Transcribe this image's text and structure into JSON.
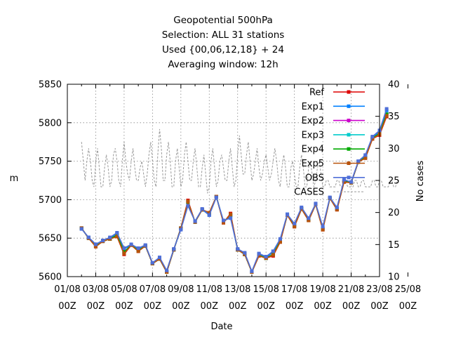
{
  "chart_data": {
    "type": "line",
    "title_lines": [
      "Geopotential 500hPa",
      "Selection: ALL     31 stations",
      "Used {00,06,12,18} + 24",
      "Averaging window: 12h"
    ],
    "xlabel": "Date",
    "ylabel": "m",
    "y2label": "No cases",
    "xlim": [
      0,
      22
    ],
    "ylim": [
      5600,
      5850
    ],
    "y2lim": [
      10,
      40
    ],
    "x_tick_labels": [
      [
        "01/08",
        "00Z"
      ],
      [
        "03/08",
        "00Z"
      ],
      [
        "05/08",
        "00Z"
      ],
      [
        "07/08",
        "00Z"
      ],
      [
        "09/08",
        "00Z"
      ],
      [
        "11/08",
        "00Z"
      ],
      [
        "13/08",
        "00Z"
      ],
      [
        "15/08",
        "00Z"
      ],
      [
        "17/08",
        "00Z"
      ],
      [
        "19/08",
        "00Z"
      ],
      [
        "21/08",
        "00Z"
      ],
      [
        "23/08",
        "00Z"
      ],
      [
        "25/08",
        "00Z"
      ]
    ],
    "y_ticks": [
      5600,
      5650,
      5700,
      5750,
      5800,
      5850
    ],
    "y2_ticks": [
      10,
      15,
      20,
      25,
      30,
      35,
      40
    ],
    "grid": true,
    "legend_position": "top-right",
    "x": [
      1.0,
      1.5,
      2.0,
      2.5,
      3.0,
      3.5,
      4.0,
      4.5,
      5.0,
      5.5,
      6.0,
      6.5,
      7.0,
      7.5,
      8.0,
      8.5,
      9.0,
      9.5,
      10.0,
      10.5,
      11.0,
      11.5,
      12.0,
      12.5,
      13.0,
      13.5,
      14.0,
      14.5,
      15.0,
      15.5,
      16.0,
      16.5,
      17.0,
      17.5,
      18.0,
      18.5,
      19.0,
      19.5,
      20.0,
      20.5,
      21.0,
      21.5,
      22.0,
      22.5
    ],
    "series": [
      {
        "name": "Ref",
        "color": "#dd0000",
        "style": "solid",
        "values": [
          5663,
          5650,
          5639,
          5646,
          5649,
          5652,
          5629,
          5641,
          5633,
          5640,
          5617,
          5623,
          5606,
          5635,
          5663,
          5699,
          5671,
          5687,
          5683,
          5704,
          5670,
          5682,
          5635,
          5629,
          5606,
          5627,
          5624,
          5627,
          5645,
          5680,
          5665,
          5688,
          5673,
          5694,
          5661,
          5702,
          5687,
          5723,
          5722,
          5749,
          5754,
          5779,
          5784,
          5808
        ]
      },
      {
        "name": "Exp1",
        "color": "#0080ff",
        "style": "solid",
        "values": [
          5662,
          5651,
          5642,
          5647,
          5650,
          5656,
          5636,
          5641,
          5636,
          5640,
          5617,
          5624,
          5607,
          5635,
          5662,
          5694,
          5672,
          5687,
          5680,
          5704,
          5672,
          5677,
          5635,
          5630,
          5606,
          5629,
          5625,
          5632,
          5648,
          5681,
          5668,
          5689,
          5675,
          5694,
          5664,
          5702,
          5689,
          5725,
          5722,
          5749,
          5757,
          5781,
          5788,
          5816
        ]
      },
      {
        "name": "Exp2",
        "color": "#cc00cc",
        "style": "solid",
        "values": [
          5663,
          5650,
          5640,
          5646,
          5649,
          5654,
          5632,
          5641,
          5634,
          5640,
          5617,
          5623,
          5606,
          5635,
          5663,
          5697,
          5671,
          5687,
          5682,
          5704,
          5671,
          5680,
          5635,
          5629,
          5606,
          5628,
          5624,
          5629,
          5646,
          5680,
          5666,
          5688,
          5674,
          5694,
          5662,
          5702,
          5688,
          5724,
          5722,
          5749,
          5755,
          5780,
          5786,
          5811
        ]
      },
      {
        "name": "Exp3",
        "color": "#00cccc",
        "style": "solid",
        "values": [
          5663,
          5650,
          5640,
          5646,
          5649,
          5654,
          5632,
          5641,
          5634,
          5640,
          5617,
          5623,
          5606,
          5635,
          5663,
          5697,
          5671,
          5687,
          5682,
          5704,
          5671,
          5680,
          5635,
          5629,
          5606,
          5628,
          5624,
          5629,
          5646,
          5680,
          5666,
          5688,
          5674,
          5694,
          5662,
          5702,
          5688,
          5724,
          5722,
          5749,
          5755,
          5780,
          5786,
          5811
        ]
      },
      {
        "name": "Exp4",
        "color": "#00aa00",
        "style": "solid",
        "values": [
          5663,
          5650,
          5640,
          5646,
          5649,
          5654,
          5632,
          5641,
          5634,
          5640,
          5617,
          5623,
          5606,
          5635,
          5663,
          5697,
          5671,
          5687,
          5682,
          5704,
          5671,
          5680,
          5635,
          5629,
          5606,
          5628,
          5624,
          5629,
          5646,
          5680,
          5666,
          5688,
          5674,
          5694,
          5662,
          5702,
          5688,
          5724,
          5722,
          5749,
          5755,
          5780,
          5786,
          5811
        ]
      },
      {
        "name": "Exp5",
        "color": "#b8520a",
        "style": "solid",
        "values": [
          5663,
          5650,
          5639,
          5646,
          5649,
          5652,
          5630,
          5641,
          5633,
          5640,
          5617,
          5623,
          5606,
          5635,
          5663,
          5698,
          5671,
          5687,
          5683,
          5704,
          5670,
          5681,
          5635,
          5629,
          5606,
          5627,
          5624,
          5628,
          5645,
          5680,
          5665,
          5688,
          5673,
          5694,
          5661,
          5702,
          5687,
          5723,
          5722,
          5749,
          5754,
          5779,
          5785,
          5809
        ]
      },
      {
        "name": "OBS",
        "color": "#4f6fd8",
        "style": "solid",
        "values": [
          5662,
          5651,
          5642,
          5647,
          5651,
          5657,
          5637,
          5642,
          5637,
          5641,
          5618,
          5625,
          5608,
          5636,
          5661,
          5692,
          5672,
          5688,
          5680,
          5703,
          5673,
          5676,
          5636,
          5631,
          5607,
          5630,
          5626,
          5633,
          5649,
          5681,
          5669,
          5690,
          5676,
          5695,
          5665,
          5703,
          5690,
          5726,
          5723,
          5750,
          5758,
          5782,
          5790,
          5818
        ]
      }
    ],
    "cases": {
      "name": "CASES",
      "color": "#999999",
      "style": "dashed",
      "axis": "y2",
      "x_start": 1.0,
      "x_step": 0.125,
      "values": [
        31,
        28,
        25,
        28,
        30,
        28,
        25,
        24,
        28,
        30,
        27,
        24,
        24,
        27,
        29,
        27,
        24,
        25,
        29,
        30,
        28,
        25,
        24,
        28,
        31,
        28,
        26,
        25,
        28,
        30,
        27,
        25,
        25,
        27,
        28,
        26,
        24,
        26,
        29,
        31,
        28,
        25,
        24,
        29,
        33,
        30,
        25,
        25,
        29,
        31,
        28,
        24,
        24,
        28,
        30,
        27,
        24,
        25,
        29,
        31,
        28,
        25,
        25,
        28,
        30,
        27,
        24,
        24,
        27,
        29,
        26,
        23,
        24,
        28,
        30,
        27,
        24,
        25,
        28,
        29,
        27,
        25,
        25,
        28,
        30,
        27,
        24,
        25,
        29,
        32,
        29,
        26,
        26,
        29,
        31,
        28,
        25,
        26,
        28,
        30,
        27,
        25,
        26,
        28,
        29,
        27,
        25,
        26,
        28,
        30,
        28,
        25,
        24,
        27,
        29,
        27,
        24,
        24,
        27,
        28,
        26,
        24,
        24,
        27,
        29,
        27,
        24,
        24,
        27,
        28,
        26,
        24,
        25,
        27,
        28,
        26,
        24,
        24,
        25,
        25,
        24,
        24,
        24,
        24,
        25,
        25,
        24,
        24,
        25,
        25,
        24,
        24,
        24,
        24,
        25,
        25,
        24,
        24,
        25,
        25,
        24,
        24,
        24,
        24,
        25,
        25,
        24,
        24,
        25,
        25,
        24,
        24,
        24,
        24,
        25,
        25,
        24,
        24,
        25,
        25
      ]
    }
  }
}
